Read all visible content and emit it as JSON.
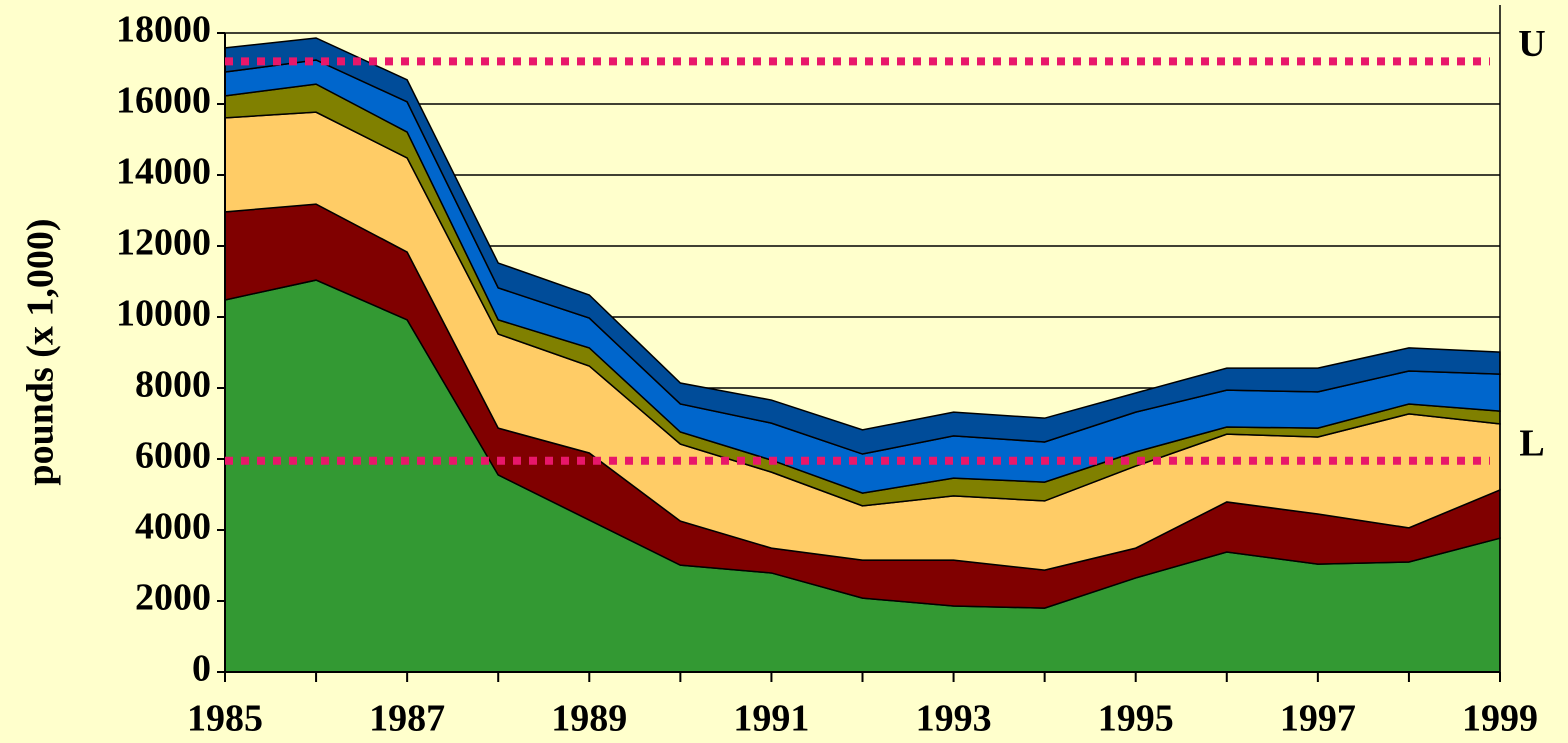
{
  "chart_data": {
    "type": "stacked_area",
    "y_label": "pounds (x 1,000)",
    "x": [
      1985,
      1986,
      1987,
      1988,
      1989,
      1990,
      1991,
      1992,
      1993,
      1994,
      1995,
      1996,
      1997,
      1998,
      1999
    ],
    "xlim": [
      1985,
      1999
    ],
    "xticks": [
      1985,
      1987,
      1989,
      1991,
      1993,
      1995,
      1997,
      1999
    ],
    "ylim": [
      0,
      18000
    ],
    "yticks": [
      0,
      2000,
      4000,
      6000,
      8000,
      10000,
      12000,
      14000,
      16000,
      18000
    ],
    "grid": true,
    "series": [
      {
        "color": "#339933",
        "values": [
          10480,
          11040,
          9920,
          5550,
          4280,
          3010,
          2790,
          2080,
          1860,
          1800,
          2650,
          3380,
          3040,
          3100,
          3770
        ]
      },
      {
        "color": "#800000",
        "values": [
          2480,
          2140,
          1910,
          1320,
          1890,
          1240,
          700,
          1070,
          1290,
          1070,
          840,
          1410,
          1410,
          960,
          1360
        ]
      },
      {
        "color": "#ffcc66",
        "values": [
          2650,
          2590,
          2650,
          2650,
          2450,
          2170,
          2140,
          1530,
          1810,
          1950,
          2310,
          1910,
          2170,
          3210,
          1860
        ]
      },
      {
        "color": "#808000",
        "values": [
          620,
          790,
          730,
          400,
          510,
          340,
          340,
          360,
          500,
          530,
          400,
          200,
          250,
          280,
          360
        ]
      },
      {
        "color": "#0066cc",
        "values": [
          670,
          680,
          850,
          900,
          840,
          790,
          1040,
          1100,
          1190,
          1130,
          1120,
          1040,
          1020,
          930,
          1040
        ]
      },
      {
        "color": "#004c99",
        "values": [
          680,
          620,
          620,
          700,
          650,
          590,
          650,
          680,
          670,
          670,
          540,
          620,
          670,
          650,
          620
        ]
      }
    ],
    "reference_lines": [
      {
        "value": 17200,
        "label": "U",
        "color": "#e8176a"
      },
      {
        "value": 5950,
        "label": "L",
        "color": "#e8176a"
      }
    ]
  }
}
